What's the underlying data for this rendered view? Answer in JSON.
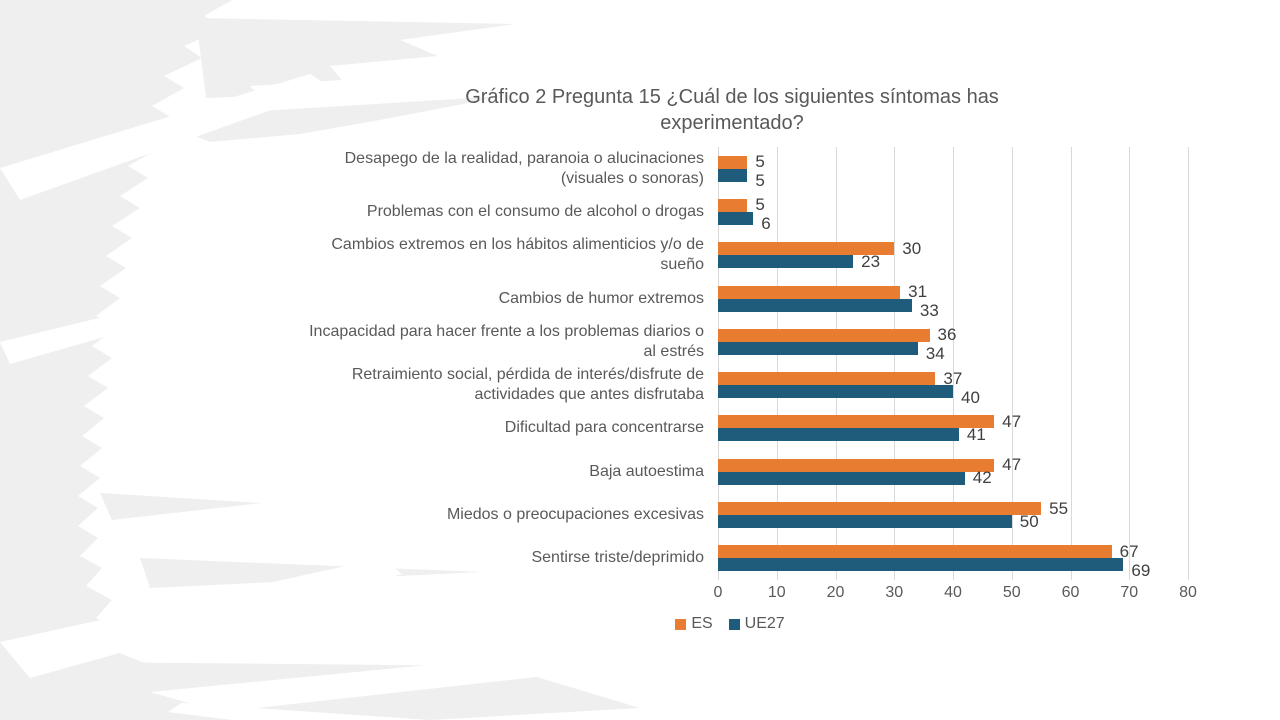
{
  "slide": {
    "note": "static presentation slide containing one chart"
  },
  "chart_data": {
    "type": "bar",
    "orientation": "horizontal",
    "title": "Gráfico 2 Pregunta 15 ¿Cuál de los siguientes síntomas has experimentado?",
    "categories": [
      "Desapego de la realidad, paranoia o alucinaciones (visuales o sonoras)",
      "Problemas con el consumo de alcohol o drogas",
      "Cambios extremos en  los hábitos alimenticios y/o de sueño",
      "Cambios de humor extremos",
      "Incapacidad para hacer frente a los problemas diarios o al estrés",
      "Retraimiento social, pérdida de interés/disfrute de actividades que antes disfrutaba",
      "Dificultad para concentrarse",
      "Baja autoestima",
      "Miedos o preocupaciones excesivas",
      "Sentirse triste/deprimido"
    ],
    "categories_order": "top to bottom as displayed",
    "series": [
      {
        "name": "ES",
        "color": "#e87c30",
        "values": [
          5,
          5,
          30,
          31,
          36,
          37,
          47,
          47,
          55,
          67
        ]
      },
      {
        "name": "UE27",
        "color": "#1f5c7b",
        "values": [
          5,
          6,
          23,
          33,
          34,
          40,
          41,
          42,
          50,
          69
        ]
      }
    ],
    "xlim": [
      0,
      80
    ],
    "x_ticks": [
      0,
      10,
      20,
      30,
      40,
      50,
      60,
      70,
      80
    ],
    "grid": true,
    "value_labels": true,
    "legend_position": "bottom"
  },
  "colors": {
    "title_text": "#595959",
    "axis_text": "#595959",
    "value_label_text": "#404040",
    "gridline": "#d9d9d9",
    "background_decoration": "#efeff0"
  }
}
